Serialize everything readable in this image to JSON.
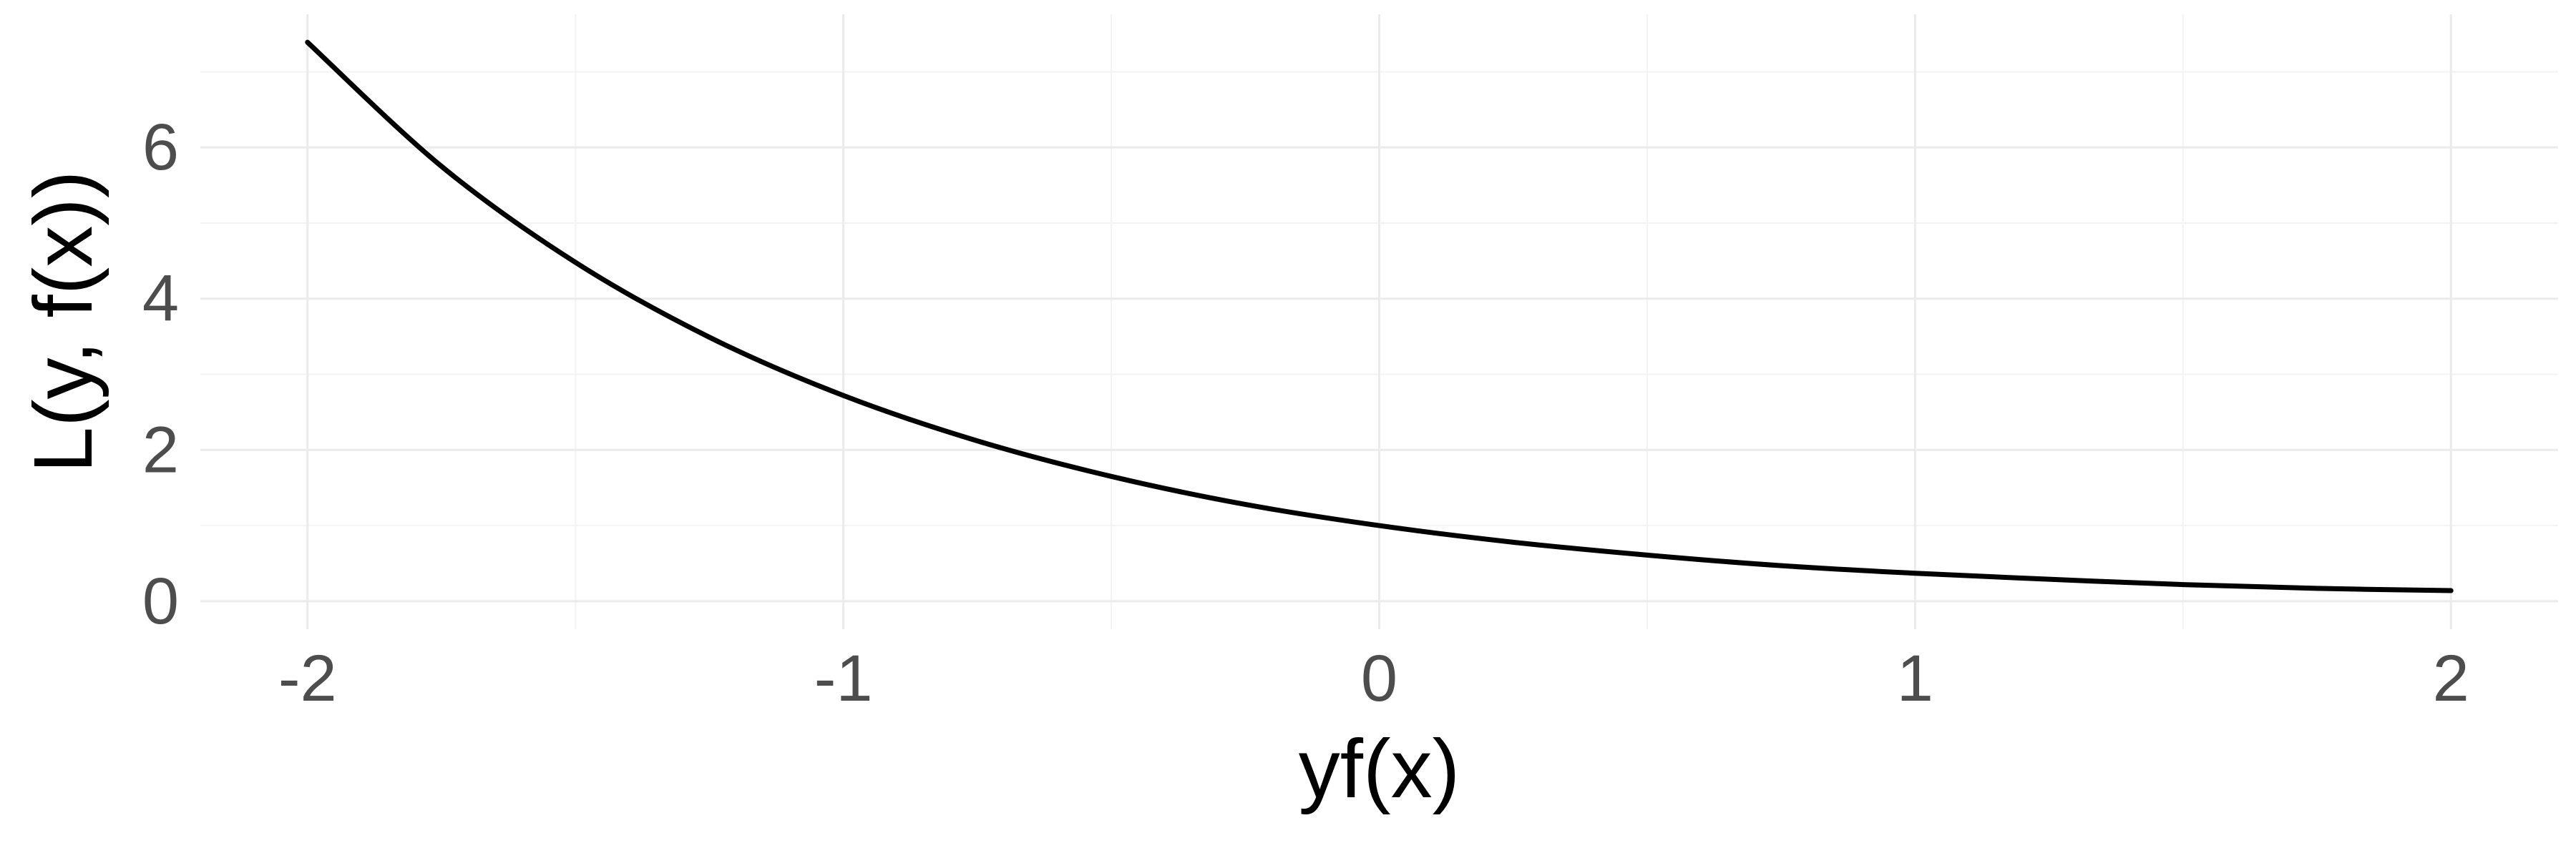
{
  "chart_data": {
    "type": "line",
    "title": "",
    "xlabel": "yf(x)",
    "ylabel": "L(y, f(x))",
    "xlim": [
      -2.2,
      2.2
    ],
    "ylim": [
      -0.37,
      7.76
    ],
    "x_ticks": [
      -2,
      -1,
      0,
      1,
      2
    ],
    "x_tick_labels": [
      "-2",
      "-1",
      "0",
      "1",
      "2"
    ],
    "y_ticks": [
      0,
      2,
      4,
      6
    ],
    "y_tick_labels": [
      "0",
      "2",
      "4",
      "6"
    ],
    "grid": true,
    "legend": "none",
    "series": [
      {
        "color": "#000000",
        "x": [
          -2,
          -1.75,
          -1.5,
          -1.25,
          -1,
          -0.75,
          -0.5,
          -0.25,
          0,
          0.25,
          0.5,
          0.75,
          1,
          1.25,
          1.5,
          1.75,
          2
        ],
        "y": [
          7.39,
          5.75,
          4.48,
          3.49,
          2.72,
          2.12,
          1.65,
          1.28,
          1.0,
          0.78,
          0.61,
          0.47,
          0.37,
          0.29,
          0.22,
          0.17,
          0.14
        ]
      }
    ]
  },
  "colors": {
    "background": "#ffffff",
    "grid_major": "#ebebeb",
    "grid_minor": "#f3f3f3",
    "tick_text": "#4d4d4d",
    "axis_title": "#000000"
  }
}
